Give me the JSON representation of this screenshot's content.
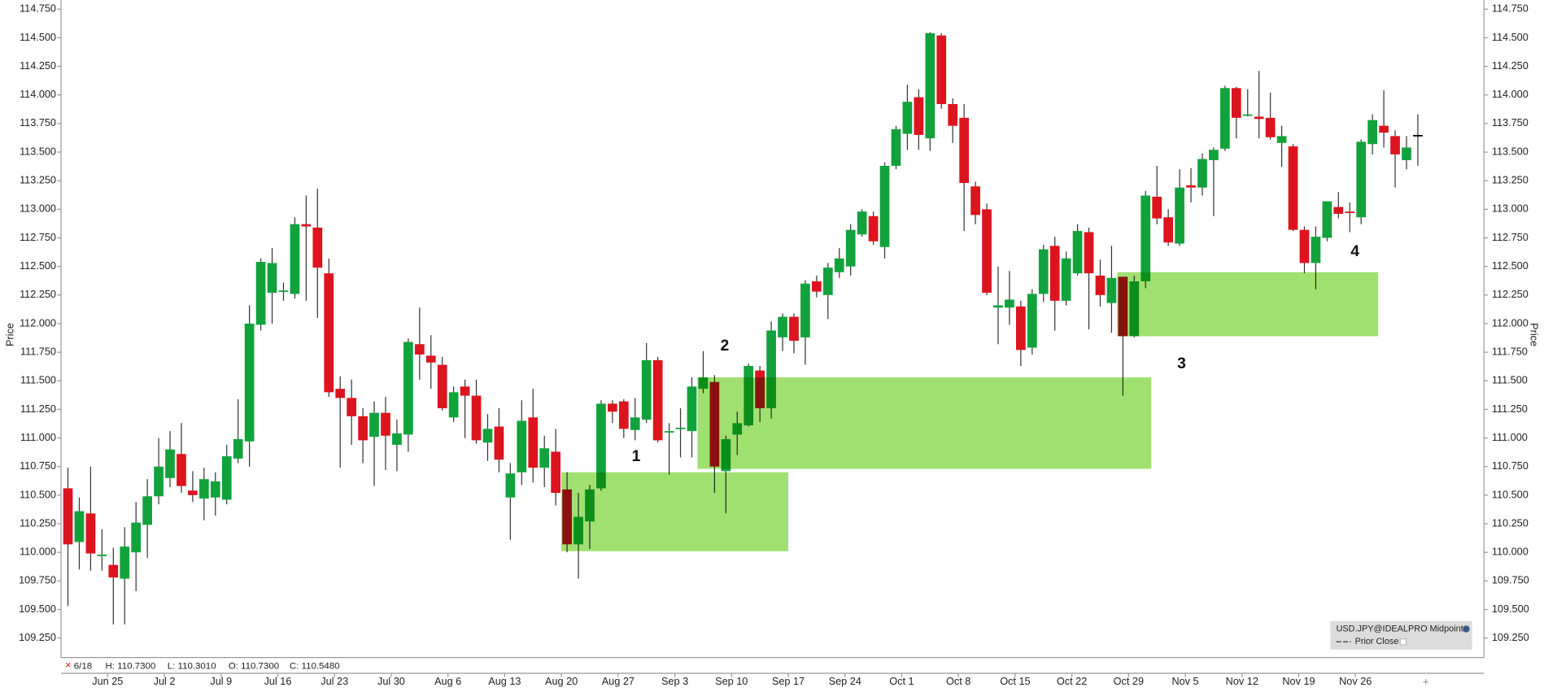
{
  "chart_data": {
    "type": "candlestick",
    "y_label": "Price",
    "categories": [
      null,
      null,
      null,
      null,
      "Jun 25",
      null,
      null,
      null,
      null,
      "Jul 2",
      null,
      null,
      null,
      null,
      "Jul 9",
      null,
      null,
      null,
      null,
      "Jul 16",
      null,
      null,
      null,
      null,
      "Jul 23",
      null,
      null,
      null,
      null,
      "Jul 30",
      null,
      null,
      null,
      null,
      "Aug 6",
      null,
      null,
      null,
      null,
      "Aug 13",
      null,
      null,
      null,
      null,
      "Aug 20",
      null,
      null,
      null,
      null,
      "Aug 27",
      null,
      null,
      null,
      null,
      "Sep 3",
      null,
      null,
      null,
      null,
      "Sep 10",
      null,
      null,
      null,
      null,
      "Sep 17",
      null,
      null,
      null,
      null,
      "Sep 24",
      null,
      null,
      null,
      null,
      "Oct 1",
      null,
      null,
      null,
      null,
      "Oct 8",
      null,
      null,
      null,
      null,
      "Oct 15",
      null,
      null,
      null,
      null,
      "Oct 22",
      null,
      null,
      null,
      null,
      "Oct 29",
      null,
      null,
      null,
      null,
      "Nov 5",
      null,
      null,
      null,
      null,
      "Nov 12",
      null,
      null,
      null,
      null,
      "Nov 19",
      null,
      null,
      null,
      null,
      "Nov 26",
      null,
      null,
      null,
      null,
      null
    ],
    "open": [
      110.56,
      110.09,
      110.34,
      109.97,
      109.89,
      109.77,
      110.0,
      110.24,
      110.49,
      110.65,
      110.86,
      110.54,
      110.47,
      110.48,
      110.46,
      110.82,
      110.97,
      111.99,
      112.27,
      112.28,
      112.26,
      112.87,
      112.84,
      112.44,
      111.43,
      111.35,
      111.19,
      111.01,
      111.22,
      110.94,
      111.03,
      111.82,
      111.72,
      111.64,
      111.18,
      111.45,
      111.37,
      110.96,
      111.1,
      110.48,
      110.7,
      111.18,
      110.74,
      110.88,
      110.55,
      110.07,
      110.27,
      110.56,
      111.3,
      111.32,
      111.07,
      111.16,
      111.68,
      111.05,
      111.08,
      111.06,
      111.43,
      111.49,
      110.71,
      111.03,
      111.11,
      111.59,
      111.26,
      111.88,
      112.06,
      111.88,
      112.37,
      112.25,
      112.45,
      112.5,
      112.78,
      112.94,
      112.67,
      113.38,
      113.66,
      113.98,
      113.62,
      114.52,
      113.92,
      113.8,
      113.2,
      113.0,
      112.14,
      112.14,
      112.15,
      111.79,
      112.26,
      112.68,
      112.2,
      112.44,
      112.8,
      112.42,
      112.18,
      112.41,
      111.89,
      112.37,
      113.11,
      112.93,
      112.7,
      113.21,
      113.19,
      113.43,
      113.53,
      114.06,
      113.82,
      113.81,
      113.8,
      113.58,
      113.55,
      112.82,
      112.53,
      112.75,
      113.02,
      112.98,
      112.93,
      113.57,
      113.73,
      113.64,
      113.43,
      113.65
    ],
    "high": [
      110.74,
      110.48,
      110.75,
      110.2,
      110.04,
      110.22,
      110.44,
      110.64,
      111.0,
      111.06,
      111.13,
      110.71,
      110.74,
      110.7,
      110.94,
      111.34,
      112.16,
      112.57,
      112.66,
      112.36,
      112.93,
      113.12,
      113.18,
      112.57,
      111.54,
      111.51,
      111.26,
      111.32,
      111.36,
      111.16,
      111.87,
      112.14,
      111.9,
      111.71,
      111.45,
      111.51,
      111.51,
      111.21,
      111.26,
      110.78,
      111.33,
      111.43,
      111.02,
      111.08,
      110.7,
      110.52,
      110.59,
      111.33,
      111.33,
      111.34,
      111.35,
      111.83,
      111.71,
      111.13,
      111.26,
      111.53,
      111.76,
      111.55,
      111.02,
      111.23,
      111.65,
      111.63,
      112.02,
      112.09,
      112.09,
      112.38,
      112.42,
      112.53,
      112.66,
      112.87,
      113.0,
      112.98,
      113.41,
      113.73,
      114.09,
      114.05,
      114.55,
      114.54,
      113.97,
      113.92,
      113.24,
      113.05,
      112.5,
      112.46,
      112.2,
      112.3,
      112.69,
      112.76,
      112.63,
      112.87,
      112.84,
      112.56,
      112.68,
      112.41,
      112.42,
      113.16,
      113.38,
      113.0,
      113.35,
      113.36,
      113.49,
      113.54,
      114.08,
      114.07,
      114.05,
      114.21,
      114.02,
      113.73,
      113.57,
      112.85,
      112.85,
      113.07,
      113.15,
      113.06,
      113.61,
      113.83,
      114.04,
      113.69,
      113.64,
      113.83
    ],
    "low": [
      109.53,
      109.85,
      109.84,
      109.84,
      109.37,
      109.37,
      109.66,
      109.95,
      110.42,
      110.57,
      110.52,
      110.44,
      110.28,
      110.32,
      110.42,
      110.78,
      110.75,
      111.94,
      112.0,
      112.2,
      112.22,
      112.2,
      112.05,
      111.36,
      110.74,
      110.94,
      110.78,
      110.58,
      110.72,
      110.71,
      110.88,
      111.51,
      111.43,
      111.24,
      111.14,
      111.0,
      110.95,
      110.8,
      110.7,
      110.11,
      110.59,
      110.61,
      110.57,
      110.41,
      110.0,
      109.77,
      110.03,
      110.54,
      111.13,
      111.0,
      110.98,
      111.13,
      110.96,
      110.68,
      110.83,
      110.83,
      111.39,
      110.52,
      110.34,
      110.85,
      111.1,
      111.14,
      111.17,
      111.76,
      111.74,
      111.64,
      112.23,
      112.04,
      112.4,
      112.42,
      112.76,
      112.69,
      112.57,
      113.35,
      113.52,
      113.52,
      113.51,
      113.88,
      113.58,
      112.81,
      112.87,
      112.25,
      111.82,
      111.99,
      111.63,
      111.73,
      112.19,
      111.94,
      112.16,
      112.42,
      111.95,
      112.15,
      111.92,
      111.37,
      111.88,
      112.31,
      112.87,
      112.68,
      112.68,
      113.06,
      113.12,
      112.94,
      113.51,
      113.62,
      113.81,
      113.62,
      113.61,
      113.37,
      112.81,
      112.44,
      112.3,
      112.72,
      112.92,
      112.8,
      112.87,
      113.48,
      113.54,
      113.19,
      113.35,
      113.38
    ],
    "close": [
      110.07,
      110.36,
      109.99,
      109.98,
      109.78,
      110.05,
      110.26,
      110.49,
      110.75,
      110.9,
      110.58,
      110.5,
      110.64,
      110.62,
      110.84,
      110.99,
      112.0,
      112.54,
      112.53,
      112.29,
      112.87,
      112.85,
      112.49,
      111.4,
      111.35,
      111.19,
      110.98,
      111.22,
      111.02,
      111.04,
      111.84,
      111.73,
      111.66,
      111.26,
      111.4,
      111.37,
      110.98,
      111.08,
      110.81,
      110.69,
      111.15,
      110.74,
      110.91,
      110.52,
      110.07,
      110.31,
      110.55,
      111.3,
      111.23,
      111.08,
      111.18,
      111.68,
      110.98,
      111.06,
      111.09,
      111.45,
      111.53,
      110.75,
      110.99,
      111.13,
      111.63,
      111.26,
      111.94,
      112.06,
      111.85,
      112.35,
      112.28,
      112.49,
      112.57,
      112.82,
      112.98,
      112.72,
      113.38,
      113.7,
      113.94,
      113.65,
      114.54,
      113.92,
      113.73,
      113.23,
      112.95,
      112.27,
      112.16,
      112.21,
      111.77,
      112.26,
      112.65,
      112.2,
      112.57,
      112.81,
      112.44,
      112.25,
      112.4,
      111.89,
      112.37,
      113.12,
      112.92,
      112.71,
      113.19,
      113.19,
      113.44,
      113.52,
      114.06,
      113.8,
      113.83,
      113.79,
      113.63,
      113.64,
      112.82,
      112.53,
      112.76,
      113.07,
      112.96,
      112.97,
      113.59,
      113.78,
      113.67,
      113.48,
      113.54,
      113.65
    ],
    "colors": {
      "up": "#12a23c",
      "down": "#dc141e",
      "flat": "#000000",
      "wick": "#333333"
    },
    "ylim": [
      109.08,
      114.83
    ],
    "yticks": [
      {
        "value": 109.25,
        "label": "109.250"
      },
      {
        "value": 109.5,
        "label": "109.500"
      },
      {
        "value": 109.75,
        "label": "109.750"
      },
      {
        "value": 110,
        "label": "110.000"
      },
      {
        "value": 110.25,
        "label": "110.250"
      },
      {
        "value": 110.5,
        "label": "110.500"
      },
      {
        "value": 110.75,
        "label": "110.750"
      },
      {
        "value": 111,
        "label": "111.000"
      },
      {
        "value": 111.25,
        "label": "111.250"
      },
      {
        "value": 111.5,
        "label": "111.500"
      },
      {
        "value": 111.75,
        "label": "111.750"
      },
      {
        "value": 112,
        "label": "112.000"
      },
      {
        "value": 112.25,
        "label": "112.250"
      },
      {
        "value": 112.5,
        "label": "112.500"
      },
      {
        "value": 112.75,
        "label": "112.750"
      },
      {
        "value": 113,
        "label": "113.000"
      },
      {
        "value": 113.25,
        "label": "113.250"
      },
      {
        "value": 113.5,
        "label": "113.500"
      },
      {
        "value": 113.75,
        "label": "113.750"
      },
      {
        "value": 114,
        "label": "114.000"
      },
      {
        "value": 114.25,
        "label": "114.250"
      },
      {
        "value": 114.5,
        "label": "114.500"
      },
      {
        "value": 114.75,
        "label": "114.750"
      }
    ],
    "grid": false,
    "zones": [
      {
        "start": 44,
        "end": 63,
        "low": 110.01,
        "high": 110.7
      },
      {
        "start": 56,
        "end": 95,
        "low": 110.73,
        "high": 111.53
      },
      {
        "start": 93,
        "end": 115,
        "low": 111.89,
        "high": 112.45
      }
    ],
    "zone_color": "#a0e070",
    "annotations": [
      "1",
      "2",
      "3",
      "4"
    ],
    "info": [
      "6/18",
      "H: 110.7300",
      "L: 110.3010",
      "O: 110.7300",
      "C: 110.5480"
    ],
    "legend": [
      "USD.JPY@IDEALPRO Midpoint",
      "Prior Close"
    ]
  }
}
